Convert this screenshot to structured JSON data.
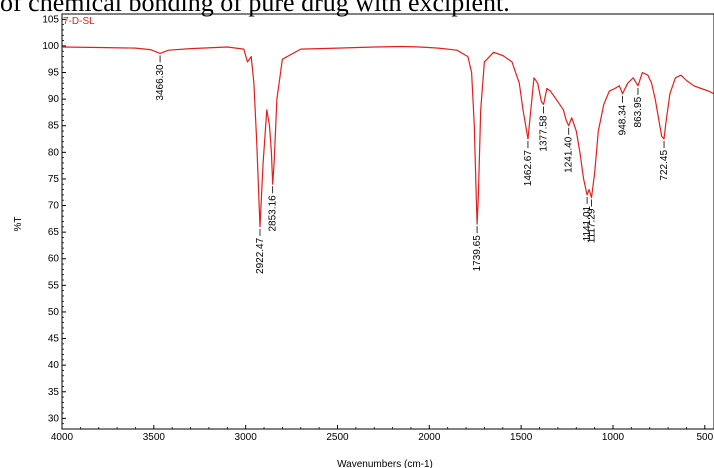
{
  "caption": "of chemical bonding of pure drug with excipient.",
  "chart_data": {
    "type": "line",
    "title": "",
    "sample_label": "7-D-SL",
    "xlabel": "Wavenumbers (cm-1)",
    "ylabel": "%T",
    "xlim": [
      4000,
      450
    ],
    "ylim": [
      28,
      106
    ],
    "x_reversed": true,
    "x_ticks": [
      4000,
      3500,
      3000,
      2500,
      2000,
      1500,
      1000,
      500
    ],
    "y_ticks": [
      30,
      35,
      40,
      45,
      50,
      55,
      60,
      65,
      70,
      75,
      80,
      85,
      90,
      95,
      100,
      105
    ],
    "line_color": "#e02020",
    "series": [
      {
        "x": [
          4000,
          3800,
          3600,
          3520,
          3466,
          3420,
          3300,
          3100,
          3010,
          2990,
          2970,
          2955,
          2940,
          2922,
          2905,
          2885,
          2870,
          2860,
          2853,
          2845,
          2830,
          2800,
          2700,
          2500,
          2300,
          2150,
          2050,
          1950,
          1850,
          1790,
          1770,
          1755,
          1745,
          1740,
          1733,
          1720,
          1700,
          1650,
          1600,
          1550,
          1510,
          1490,
          1475,
          1463,
          1450,
          1430,
          1410,
          1390,
          1378,
          1360,
          1340,
          1300,
          1270,
          1255,
          1241,
          1225,
          1200,
          1180,
          1160,
          1141,
          1130,
          1117,
          1100,
          1080,
          1050,
          1020,
          990,
          965,
          948,
          920,
          890,
          864,
          840,
          810,
          790,
          770,
          750,
          735,
          722,
          710,
          690,
          660,
          630,
          600,
          560,
          520,
          480,
          450
        ],
        "y": [
          99.8,
          99.7,
          99.6,
          99.3,
          98.6,
          99.2,
          99.5,
          99.8,
          99.4,
          97.0,
          98.0,
          93.0,
          82.0,
          66.0,
          78.0,
          88.0,
          85.0,
          80.0,
          74.0,
          78.0,
          90.0,
          97.5,
          99.4,
          99.6,
          99.8,
          99.9,
          99.8,
          99.6,
          99.2,
          98.0,
          95.0,
          85.0,
          72.0,
          66.5,
          72.0,
          88.0,
          97.0,
          98.8,
          98.2,
          97.0,
          93.0,
          88.0,
          85.0,
          82.5,
          87.0,
          94.0,
          93.0,
          89.5,
          89.0,
          92.0,
          91.5,
          89.5,
          88.0,
          86.0,
          85.0,
          86.5,
          84.0,
          80.0,
          75.0,
          72.0,
          73.0,
          71.5,
          76.0,
          84.0,
          89.0,
          91.5,
          92.0,
          92.5,
          91.0,
          93.0,
          94.0,
          92.5,
          95.0,
          94.5,
          93.0,
          90.0,
          86.0,
          83.0,
          82.5,
          86.0,
          91.0,
          94.0,
          94.5,
          93.5,
          92.5,
          92.0,
          91.5,
          91.0
        ]
      }
    ],
    "peak_labels": [
      {
        "text": "3466.30",
        "x": 3466,
        "y": 98.6
      },
      {
        "text": "2922.47",
        "x": 2922,
        "y": 66.0
      },
      {
        "text": "2853.16",
        "x": 2853,
        "y": 74.0
      },
      {
        "text": "1739.65",
        "x": 1740,
        "y": 66.5
      },
      {
        "text": "1462.67",
        "x": 1463,
        "y": 82.5
      },
      {
        "text": "1377.58",
        "x": 1378,
        "y": 89.0
      },
      {
        "text": "1241.40",
        "x": 1241,
        "y": 85.0
      },
      {
        "text": "1141.01",
        "x": 1141,
        "y": 72.0
      },
      {
        "text": "1117.29",
        "x": 1117,
        "y": 71.5
      },
      {
        "text": "948.34",
        "x": 948,
        "y": 91.0
      },
      {
        "text": "863.95",
        "x": 864,
        "y": 92.5
      },
      {
        "text": "722.45",
        "x": 722,
        "y": 82.5
      }
    ]
  }
}
